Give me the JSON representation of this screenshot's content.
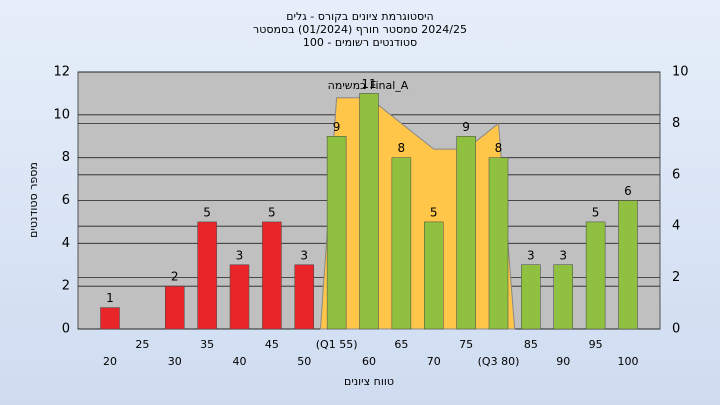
{
  "chart_data": {
    "type": "bar",
    "title": [
      "היסטוגרמת ציונים בקורס - גלים",
      "2024/25 סמסטר חורף (01/2024) בסמסטר",
      "סטודנטים רשומים - 100"
    ],
    "x_label": "טווח ציונים",
    "y_label": "מספר סטודנטים",
    "categories": [
      "20",
      "25",
      "30",
      "35",
      "40",
      "45",
      "50",
      "(Q1 55)",
      "60",
      "65",
      "70",
      "75",
      "(Q3 80)",
      "85",
      "90",
      "95",
      "100"
    ],
    "values": [
      1,
      0,
      2,
      5,
      3,
      5,
      3,
      9,
      11,
      8,
      5,
      9,
      8,
      3,
      3,
      5,
      6
    ],
    "colors": [
      "#e8262a",
      "#e8262a",
      "#e8262a",
      "#e8262a",
      "#e8262a",
      "#e8262a",
      "#e8262a",
      "#8fc040",
      "#8fc040",
      "#8fc040",
      "#8fc040",
      "#8fc040",
      "#8fc040",
      "#8fc040",
      "#8fc040",
      "#8fc040",
      "#8fc040"
    ],
    "area": {
      "name": "Final_A במשימה",
      "color": "#ffc64a",
      "axis": "y2",
      "values": [
        null,
        null,
        null,
        null,
        null,
        null,
        null,
        9,
        9,
        8,
        7,
        7,
        8,
        null,
        null,
        null,
        null
      ]
    },
    "ylim": [
      0,
      12
    ],
    "yticks": [
      0,
      2,
      4,
      6,
      8,
      10,
      12
    ],
    "y2lim": [
      0,
      10
    ],
    "y2ticks": [
      0,
      2,
      4,
      6,
      8,
      10
    ],
    "grid": true
  }
}
